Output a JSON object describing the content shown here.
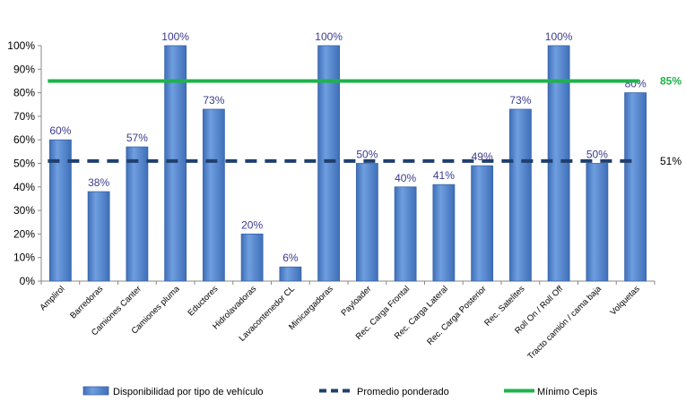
{
  "chart_data": {
    "type": "bar",
    "categories": [
      "Amplirol",
      "Barredoras",
      "Camiones Canter",
      "Camiones pluma",
      "Eductores",
      "Hidrolavadoras",
      "Lavacontenedor CL",
      "Minicargadoras",
      "Payloader",
      "Rec. Carga Frontal",
      "Rec. Carga Lateral",
      "Rec. Carga Posterior",
      "Rec. Satelites",
      "Roll On / Roll Off",
      "Tracto camión / cama baja",
      "Volquetas"
    ],
    "series": [
      {
        "name": "Disponibilidad por tipo de vehículo",
        "values": [
          60,
          38,
          57,
          100,
          73,
          20,
          6,
          100,
          50,
          40,
          41,
          49,
          73,
          100,
          50,
          80
        ],
        "data_labels": [
          "60%",
          "38%",
          "57%",
          "100%",
          "73%",
          "20%",
          "6%",
          "100%",
          "50%",
          "40%",
          "41%",
          "49%",
          "73%",
          "100%",
          "50%",
          "80%"
        ],
        "color": "#5b8bd0"
      }
    ],
    "reference_lines": [
      {
        "name": "Promedio ponderado",
        "value": 51,
        "label": "51%",
        "style": "dashed",
        "color": "#1f3f6e"
      },
      {
        "name": "Mínimo Cepis",
        "value": 85,
        "label": "85%",
        "style": "solid",
        "color": "#1db34a"
      }
    ],
    "y_ticks": [
      "0%",
      "10%",
      "20%",
      "30%",
      "40%",
      "50%",
      "60%",
      "70%",
      "80%",
      "90%",
      "100%"
    ],
    "ylim": [
      0,
      100
    ],
    "grid": false,
    "legend_position": "bottom"
  }
}
